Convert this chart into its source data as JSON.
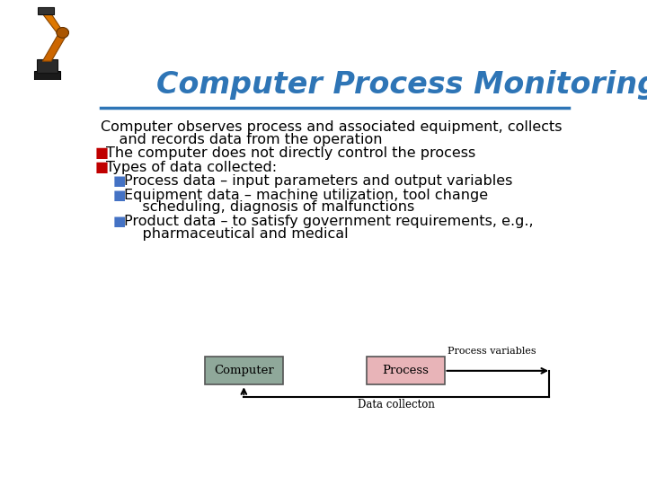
{
  "title": "Computer Process Monitoring",
  "title_color": "#2E75B6",
  "title_fontsize": 24,
  "bg_color": "#FFFFFF",
  "separator_color": "#2E75B6",
  "body_text_color": "#000000",
  "body_fontsize": 11.5,
  "bullet_color": "#C00000",
  "bullet2_color": "#4472C4",
  "line0a": "Computer observes process and associated equipment, collects",
  "line0b": "    and records data from the operation",
  "bullet1": "The computer does not directly control the process",
  "bullet2": "Types of data collected:",
  "sub_bullet1": "Process data – input parameters and output variables",
  "sub_bullet2a": "Equipment data – machine utilization, tool change",
  "sub_bullet2b": "    scheduling, diagnosis of malfunctions",
  "sub_bullet3a": "Product data – to satisfy government requirements, e.g.,",
  "sub_bullet3b": "    pharmaceutical and medical",
  "diagram": {
    "computer_box_color": "#8FA89A",
    "computer_box_edge": "#555555",
    "computer_label": "Computer",
    "process_box_color": "#E8B4B8",
    "process_box_edge": "#555555",
    "process_label": "Process",
    "process_vars_label": "Process variables",
    "data_collection_label": "Data collecton"
  }
}
